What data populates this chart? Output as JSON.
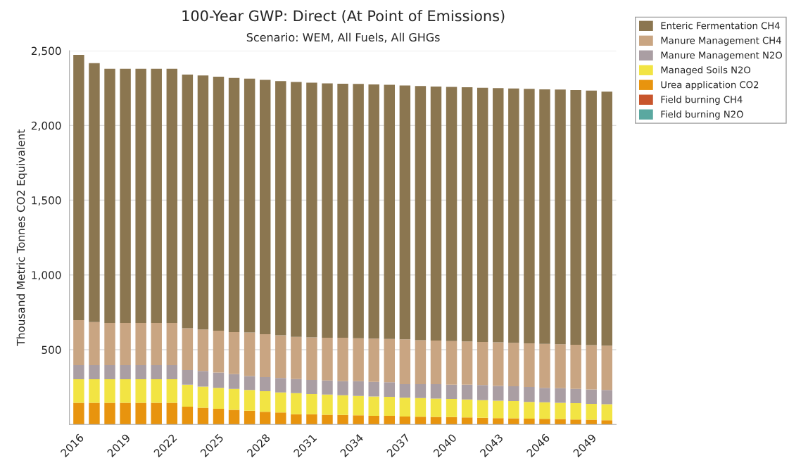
{
  "chart_data": {
    "type": "bar",
    "stacked": true,
    "title": "100-Year GWP: Direct (At Point of Emissions)",
    "subtitle": "Scenario: WEM, All Fuels, All GHGs",
    "ylabel": "Thousand Metric Tonnes CO2 Equivalent",
    "categories": [
      "2016",
      null,
      null,
      "2019",
      null,
      null,
      "2022",
      null,
      null,
      "2025",
      null,
      null,
      "2028",
      null,
      null,
      "2031",
      null,
      null,
      "2034",
      null,
      null,
      "2037",
      null,
      null,
      "2040",
      null,
      null,
      "2043",
      null,
      null,
      "2046",
      null,
      null,
      "2049",
      null
    ],
    "series": [
      {
        "name": "Field burning N2O",
        "color": "#5aa8a0",
        "values": [
          0,
          0,
          0,
          0,
          0,
          0,
          0,
          0,
          0,
          0,
          0,
          0,
          0,
          0,
          0,
          0,
          0,
          0,
          0,
          0,
          0,
          0,
          0,
          0,
          0,
          0,
          0,
          0,
          0,
          0,
          0,
          0,
          0,
          0,
          0
        ]
      },
      {
        "name": "Field burning CH4",
        "color": "#c8552c",
        "values": [
          0,
          0,
          0,
          0,
          0,
          0,
          0,
          0,
          0,
          0,
          0,
          0,
          0,
          0,
          0,
          0,
          0,
          0,
          0,
          0,
          0,
          0,
          0,
          0,
          0,
          0,
          0,
          0,
          0,
          0,
          0,
          0,
          0,
          0,
          0
        ]
      },
      {
        "name": "Urea application CO2",
        "color": "#e8940e",
        "values": [
          145,
          145,
          145,
          145,
          145,
          145,
          145,
          119,
          112,
          105,
          97,
          91,
          85,
          80,
          68,
          68,
          64,
          63,
          61,
          58,
          57,
          53,
          52,
          50,
          49,
          47,
          44,
          42,
          41,
          39,
          38,
          36,
          33,
          31,
          28
        ]
      },
      {
        "name": "Managed Soils N2O",
        "color": "#f2e443",
        "values": [
          157,
          157,
          157,
          157,
          157,
          157,
          157,
          147,
          141,
          140,
          140,
          139,
          137,
          134,
          141,
          135,
          136,
          132,
          129,
          129,
          128,
          126,
          124,
          123,
          122,
          120,
          118,
          117,
          115,
          112,
          110,
          109,
          109,
          107,
          107
        ]
      },
      {
        "name": "Manure Management N2O",
        "color": "#aa9ea3",
        "values": [
          94,
          94,
          94,
          94,
          94,
          94,
          94,
          97,
          104,
          102,
          99,
          94,
          94,
          96,
          94,
          94,
          94,
          94,
          99,
          98,
          97,
          90,
          93,
          96,
          95,
          99,
          101,
          99,
          99,
          99,
          97,
          97,
          95,
          96,
          96
        ]
      },
      {
        "name": "Manure Management CH4",
        "color": "#c9a582",
        "values": [
          302,
          289,
          283,
          283,
          283,
          283,
          283,
          280,
          278,
          280,
          282,
          291,
          288,
          286,
          283,
          285,
          286,
          291,
          288,
          289,
          290,
          300,
          295,
          292,
          292,
          289,
          289,
          291,
          291,
          292,
          294,
          294,
          296,
          296,
          296
        ]
      },
      {
        "name": "Enteric Fermentation CH4",
        "color": "#8b7650",
        "values": [
          1774,
          1732,
          1700,
          1700,
          1700,
          1700,
          1700,
          1698,
          1700,
          1700,
          1700,
          1698,
          1701,
          1701,
          1705,
          1704,
          1702,
          1700,
          1701,
          1701,
          1700,
          1699,
          1700,
          1700,
          1700,
          1701,
          1700,
          1701,
          1702,
          1703,
          1703,
          1704,
          1704,
          1703,
          1699
        ]
      }
    ],
    "ylim": [
      0,
      2500
    ],
    "yticks": [
      {
        "value": 500,
        "label": "500"
      },
      {
        "value": 1000,
        "label": "1,000"
      },
      {
        "value": 1500,
        "label": "1,500"
      },
      {
        "value": 2000,
        "label": "2,000"
      },
      {
        "value": 2500,
        "label": "2,500"
      }
    ],
    "grid": "y",
    "legend": "top right"
  }
}
